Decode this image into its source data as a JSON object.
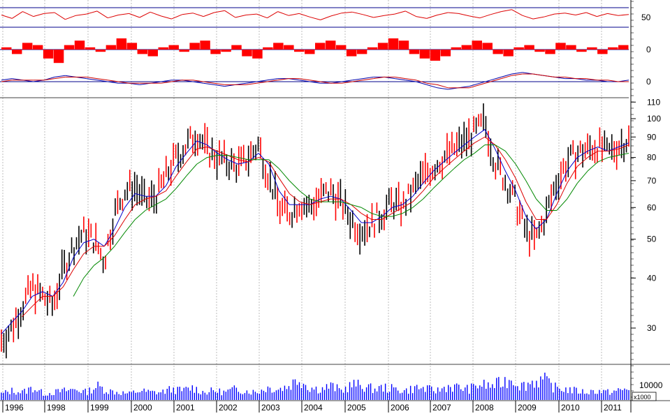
{
  "colors": {
    "background": "#ffffff",
    "up_bar": "#000000",
    "down_bar": "#ff0000",
    "ma_short": "#0000cc",
    "ma_medium": "#dd0000",
    "ma_long": "#008800",
    "volume": "#0000ff",
    "oscillator": "#dd0000",
    "histogram": "#ff0000",
    "signal_blue": "#0000aa",
    "signal_red": "#cc0000",
    "reference_line": "#00008b",
    "year_grid": "#bdbdbd"
  },
  "chart_data": [
    {
      "id": "oscillator",
      "type": "line",
      "reference_lines": [
        70,
        30
      ],
      "tick_labels": [
        "50"
      ],
      "series": [
        {
          "values": [
            55,
            48,
            62,
            52,
            58,
            60,
            46,
            54,
            57,
            63,
            49,
            55,
            58,
            50,
            61,
            53,
            47,
            56,
            59,
            52,
            60,
            64,
            50,
            55,
            57,
            49,
            62,
            54,
            58,
            51,
            45,
            53,
            59,
            61,
            56,
            50,
            54,
            57,
            63,
            52,
            48,
            55,
            60,
            58,
            53,
            49,
            56,
            62,
            66,
            54,
            47,
            51,
            57,
            59,
            55,
            60,
            52,
            58,
            54,
            56
          ]
        }
      ]
    },
    {
      "id": "histogram",
      "type": "bar",
      "tick_labels": [
        "0"
      ],
      "values": [
        1,
        -2,
        3,
        2,
        -4,
        -6,
        2,
        4,
        1,
        -1,
        2,
        5,
        3,
        -2,
        -3,
        1,
        2,
        -1,
        3,
        4,
        -2,
        -1,
        2,
        -3,
        -4,
        1,
        3,
        2,
        -1,
        -2,
        3,
        4,
        2,
        -3,
        -2,
        1,
        3,
        5,
        4,
        -2,
        -4,
        -5,
        -3,
        1,
        2,
        4,
        3,
        -2,
        -3,
        1,
        2,
        -1,
        -2,
        3,
        2,
        -1,
        1,
        -2,
        1,
        2
      ]
    },
    {
      "id": "momentum",
      "type": "line",
      "tick_labels": [
        "0"
      ],
      "series": [
        {
          "values": [
            1,
            2,
            1,
            0,
            1,
            3,
            4,
            3,
            2,
            1,
            0,
            -1,
            -1,
            -2,
            -1,
            0,
            1,
            1,
            0,
            -1,
            -2,
            -3,
            -2,
            -1,
            0,
            1,
            2,
            2,
            1,
            0,
            -1,
            -1,
            0,
            1,
            2,
            3,
            3,
            2,
            1,
            0,
            -2,
            -4,
            -5,
            -4,
            -3,
            -1,
            1,
            3,
            5,
            6,
            5,
            4,
            3,
            2,
            2,
            1,
            1,
            0,
            0,
            1
          ]
        },
        {
          "values": [
            0,
            1,
            1,
            1,
            1,
            2,
            3,
            3,
            3,
            2,
            1,
            0,
            -1,
            -1,
            -1,
            -1,
            0,
            1,
            1,
            0,
            -1,
            -2,
            -2,
            -2,
            -1,
            0,
            1,
            2,
            2,
            1,
            0,
            -1,
            -1,
            0,
            1,
            2,
            3,
            3,
            2,
            1,
            -1,
            -2,
            -4,
            -4,
            -4,
            -2,
            0,
            2,
            4,
            5,
            5,
            4,
            3,
            3,
            2,
            2,
            1,
            1,
            0,
            0
          ]
        }
      ]
    },
    {
      "id": "price",
      "type": "line",
      "scale": "log",
      "ylim": [
        25,
        110
      ],
      "tick_labels": [
        "110",
        "100",
        "90",
        "80",
        "70",
        "60",
        "50",
        "40",
        "30"
      ],
      "x": [
        "1996",
        "1996.25",
        "1996.5",
        "1996.75",
        "1997",
        "1997.25",
        "1997.5",
        "1997.75",
        "1998",
        "1998.25",
        "1998.5",
        "1998.75",
        "1999",
        "1999.25",
        "1999.5",
        "1999.75",
        "2000",
        "2000.25",
        "2000.5",
        "2000.75",
        "2001",
        "2001.25",
        "2001.5",
        "2001.75",
        "2002",
        "2002.25",
        "2002.5",
        "2002.75",
        "2003",
        "2003.25",
        "2003.5",
        "2003.75",
        "2004",
        "2004.25",
        "2004.5",
        "2004.75",
        "2005",
        "2005.25",
        "2005.5",
        "2005.75",
        "2006",
        "2006.25",
        "2006.5",
        "2006.75",
        "2007",
        "2007.25",
        "2007.5",
        "2007.75",
        "2008",
        "2008.25",
        "2008.5",
        "2008.75",
        "2009",
        "2009.25",
        "2009.5",
        "2009.75",
        "2010",
        "2010.25",
        "2010.5",
        "2010.75",
        "2011",
        "2011.25"
      ],
      "series": [
        {
          "name": "price",
          "values": [
            28,
            30,
            34,
            38,
            36,
            34,
            42,
            48,
            52,
            50,
            44,
            58,
            66,
            68,
            62,
            64,
            72,
            80,
            86,
            92,
            84,
            80,
            78,
            76,
            80,
            86,
            72,
            60,
            58,
            62,
            60,
            64,
            66,
            62,
            56,
            53,
            55,
            58,
            62,
            60,
            66,
            72,
            76,
            80,
            84,
            88,
            92,
            98,
            78,
            70,
            62,
            52,
            50,
            58,
            70,
            78,
            82,
            84,
            86,
            82,
            86,
            89
          ]
        },
        {
          "name": "MA short",
          "values": [
            29,
            31,
            33,
            36,
            37,
            36,
            39,
            45,
            49,
            50,
            48,
            53,
            60,
            65,
            64,
            64,
            68,
            76,
            82,
            88,
            86,
            82,
            79,
            77,
            78,
            82,
            77,
            66,
            61,
            61,
            61,
            63,
            64,
            63,
            59,
            55,
            55,
            57,
            60,
            61,
            64,
            69,
            74,
            78,
            82,
            86,
            90,
            94,
            84,
            74,
            66,
            57,
            53,
            56,
            65,
            74,
            80,
            83,
            85,
            83,
            85,
            87
          ]
        },
        {
          "name": "MA medium",
          "values": [
            null,
            null,
            32,
            34,
            36,
            36,
            38,
            42,
            46,
            48,
            48,
            51,
            56,
            61,
            63,
            64,
            66,
            72,
            78,
            84,
            85,
            83,
            81,
            79,
            78,
            80,
            78,
            71,
            65,
            62,
            61,
            62,
            63,
            63,
            61,
            58,
            56,
            56,
            58,
            60,
            62,
            66,
            71,
            75,
            79,
            83,
            87,
            90,
            86,
            79,
            71,
            62,
            56,
            56,
            61,
            69,
            76,
            80,
            83,
            83,
            84,
            86
          ]
        },
        {
          "name": "MA long",
          "values": [
            null,
            null,
            null,
            null,
            null,
            null,
            null,
            36,
            40,
            43,
            45,
            48,
            52,
            56,
            59,
            61,
            63,
            67,
            72,
            77,
            80,
            81,
            81,
            80,
            79,
            79,
            79,
            75,
            70,
            66,
            63,
            62,
            62,
            62,
            61,
            60,
            58,
            57,
            57,
            58,
            60,
            63,
            67,
            71,
            75,
            79,
            82,
            86,
            86,
            83,
            77,
            70,
            63,
            59,
            59,
            63,
            69,
            74,
            78,
            80,
            81,
            82
          ]
        }
      ]
    },
    {
      "id": "volume",
      "type": "bar",
      "tick_labels": [
        "10000"
      ],
      "units_label": "x1000",
      "values": [
        4,
        6,
        5,
        8,
        4,
        5,
        6,
        7,
        5,
        9,
        6,
        5,
        4,
        6,
        5,
        5,
        7,
        6,
        8,
        5,
        6,
        5,
        7,
        6,
        5,
        8,
        7,
        9,
        14,
        8,
        7,
        9,
        6,
        10,
        9,
        7,
        8,
        7,
        6,
        8,
        7,
        6,
        9,
        8,
        7,
        10,
        9,
        11,
        14,
        9,
        12,
        13,
        8,
        7,
        6,
        5,
        6,
        5,
        6,
        7
      ]
    }
  ],
  "x_axis": {
    "labels": [
      "1996",
      "1998",
      "1999",
      "2000",
      "2001",
      "2002",
      "2003",
      "2004",
      "2005",
      "2006",
      "2007",
      "2008",
      "2009",
      "2010",
      "2011"
    ]
  }
}
